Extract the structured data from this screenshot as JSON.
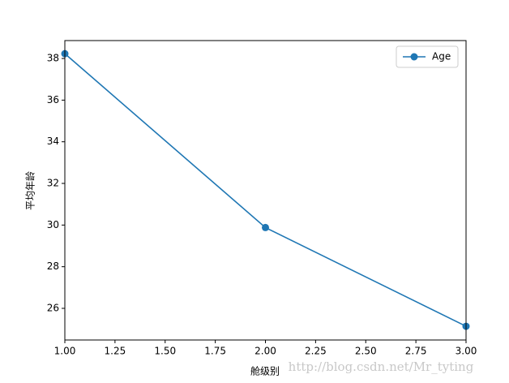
{
  "chart_data": {
    "type": "line",
    "x": [
      1,
      2,
      3
    ],
    "series": [
      {
        "name": "Age",
        "color": "#1f77b4",
        "values": [
          38.23,
          29.88,
          25.14
        ]
      }
    ],
    "xlabel": "舱级别",
    "ylabel": "平均年龄",
    "xlim": [
      1,
      3
    ],
    "xticks": [
      {
        "value": 1,
        "label": "1.00"
      },
      {
        "value": 1.25,
        "label": "1.25"
      },
      {
        "value": 1.5,
        "label": "1.50"
      },
      {
        "value": 1.75,
        "label": "1.75"
      },
      {
        "value": 2,
        "label": "2.00"
      },
      {
        "value": 2.25,
        "label": "2.25"
      },
      {
        "value": 2.5,
        "label": "2.50"
      },
      {
        "value": 2.75,
        "label": "2.75"
      },
      {
        "value": 3,
        "label": "3.00"
      }
    ],
    "ylim": [
      24.48,
      38.86
    ],
    "yticks": [
      26,
      28,
      30,
      32,
      34,
      36,
      38
    ],
    "legend": "upper right",
    "watermark": "http://blog.csdn.net/Mr_tyting"
  }
}
